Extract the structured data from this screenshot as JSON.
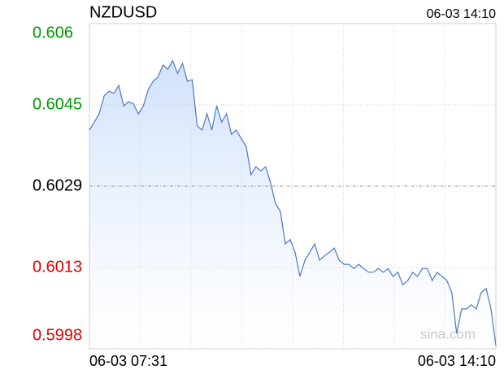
{
  "chart_data": {
    "type": "line",
    "title": "NZDUSD",
    "timestamp": "06-03 14:10",
    "watermark": "sina.com",
    "categories": [
      "06-03 07:31",
      null,
      null,
      null,
      null,
      null,
      null,
      null,
      null,
      null,
      null,
      null,
      null,
      null,
      null,
      null,
      null,
      null,
      null,
      null,
      null,
      null,
      null,
      null,
      null,
      null,
      null,
      null,
      null,
      null,
      null,
      null,
      null,
      null,
      null,
      null,
      null,
      null,
      null,
      null,
      null,
      null,
      null,
      null,
      null,
      null,
      null,
      null,
      null,
      null,
      null,
      null,
      null,
      null,
      null,
      null,
      null,
      null,
      null,
      null,
      null,
      null,
      null,
      null,
      null,
      null,
      null,
      null,
      null,
      null,
      null,
      null,
      null,
      null,
      null,
      null,
      null,
      null,
      null,
      null,
      null,
      null,
      null,
      "06-03 14:10"
    ],
    "series": [
      {
        "name": "NZDUSD",
        "color": "#4a78c8",
        "values": [
          0.60397,
          0.60412,
          0.60428,
          0.60462,
          0.60471,
          0.60467,
          0.60482,
          0.60443,
          0.60451,
          0.60447,
          0.60428,
          0.60443,
          0.60474,
          0.6049,
          0.60498,
          0.60521,
          0.60513,
          0.60529,
          0.60505,
          0.60524,
          0.6049,
          0.60493,
          0.60405,
          0.60397,
          0.60428,
          0.60397,
          0.60443,
          0.60412,
          0.60428,
          0.60389,
          0.60397,
          0.60381,
          0.60366,
          0.60312,
          0.60327,
          0.60319,
          0.60327,
          0.60296,
          0.60257,
          0.60242,
          0.6018,
          0.60188,
          0.60164,
          0.60118,
          0.60149,
          0.60164,
          0.6018,
          0.60149,
          0.60157,
          0.60164,
          0.60172,
          0.60149,
          0.60141,
          0.60141,
          0.60133,
          0.60141,
          0.60133,
          0.60126,
          0.60126,
          0.60133,
          0.60126,
          0.60133,
          0.60118,
          0.60126,
          0.60102,
          0.6011,
          0.60126,
          0.60118,
          0.60133,
          0.60133,
          0.6011,
          0.60126,
          0.60118,
          0.6011,
          0.60087,
          0.60009,
          0.60056,
          0.60056,
          0.60064,
          0.60056,
          0.60087,
          0.60095,
          0.60056,
          0.59986
        ]
      }
    ],
    "ylim": [
      0.5998,
      0.606
    ],
    "yticks": [
      0.5998,
      {
        "value": 0.60135,
        "label": "0.6013"
      },
      0.6029,
      {
        "value": 0.60445,
        "label": "0.6045"
      },
      0.606
    ],
    "ytick_labels_text": null,
    "up_color": "#009900",
    "down_color": "#e60000",
    "grid": true
  }
}
